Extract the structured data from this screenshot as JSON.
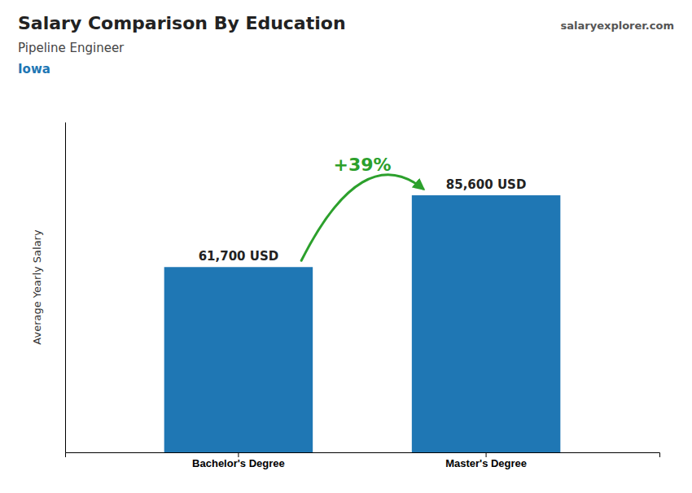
{
  "chart_data": {
    "type": "bar",
    "title": "Salary Comparison By Education",
    "subtitle": "Pipeline Engineer",
    "annotations": [
      "Iowa",
      "+39%",
      "salaryexplorer.com"
    ],
    "y_label": "Average Yearly Salary",
    "categories": [
      "Bachelor's Degree",
      "Master's Degree"
    ],
    "values": [
      61700,
      85600
    ],
    "value_labels": [
      "61,700 USD",
      "85,600 USD"
    ],
    "data_labels": true,
    "ylim": [
      0,
      110000
    ],
    "tick_labels": "x",
    "grid": false
  }
}
